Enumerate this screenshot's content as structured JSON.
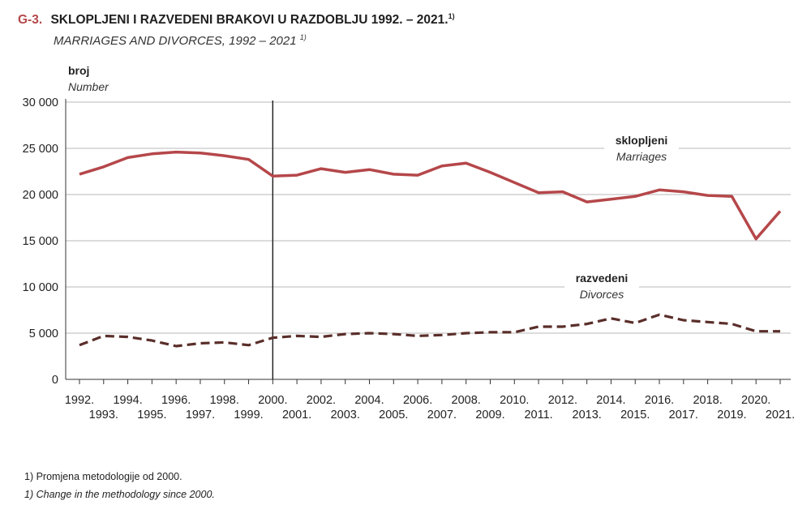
{
  "header": {
    "code": "G-3.",
    "title": "SKLOPLJENI I RAZVEDENI BRAKOVI U RAZDOBLJU 1992. – 2021.",
    "title_note": "1)",
    "subtitle": "MARRIAGES AND DIVORCES, 1992 – 2021",
    "subtitle_note": "1)"
  },
  "footnotes": {
    "hr": "1) Promjena metodologije od 2000.",
    "en": "1) Change in the methodology since 2000."
  },
  "chart_data": {
    "type": "line",
    "ylabel": "broj",
    "ylabel_en": "Number",
    "ylim": [
      0,
      30000
    ],
    "yticks": [
      0,
      5000,
      10000,
      15000,
      20000,
      25000,
      30000
    ],
    "ytick_labels": [
      "0",
      "5 000",
      "10 000",
      "15 000",
      "20 000",
      "25 000",
      "30 000"
    ],
    "grid": true,
    "vertical_marker": "2000.",
    "x": [
      "1992.",
      "1993.",
      "1994.",
      "1995.",
      "1996.",
      "1997.",
      "1998.",
      "1999.",
      "2000.",
      "2001.",
      "2002.",
      "2003.",
      "2004.",
      "2005.",
      "2006.",
      "2007.",
      "2008.",
      "2009.",
      "2010.",
      "2011.",
      "2012.",
      "2013.",
      "2014.",
      "2015.",
      "2016.",
      "2017.",
      "2018.",
      "2019.",
      "2020.",
      "2021."
    ],
    "series": [
      {
        "name": "sklopljeni",
        "name_en": "Marriages",
        "color": "#b5474a",
        "style": "solid",
        "values": [
          22200,
          23000,
          24000,
          24400,
          24600,
          24500,
          24200,
          23800,
          22000,
          22100,
          22800,
          22400,
          22700,
          22200,
          22100,
          23100,
          23400,
          22400,
          21300,
          20200,
          20300,
          19200,
          19500,
          19800,
          20500,
          20300,
          19900,
          19800,
          15200,
          18200
        ]
      },
      {
        "name": "razvedeni",
        "name_en": "Divorces",
        "color": "#5a2e2a",
        "style": "dashed",
        "values": [
          3700,
          4700,
          4600,
          4200,
          3600,
          3900,
          4000,
          3700,
          4500,
          4700,
          4600,
          4900,
          5000,
          4900,
          4700,
          4800,
          5000,
          5100,
          5100,
          5700,
          5700,
          6000,
          6600,
          6100,
          7000,
          6400,
          6200,
          6000,
          5200,
          5200
        ]
      }
    ]
  }
}
